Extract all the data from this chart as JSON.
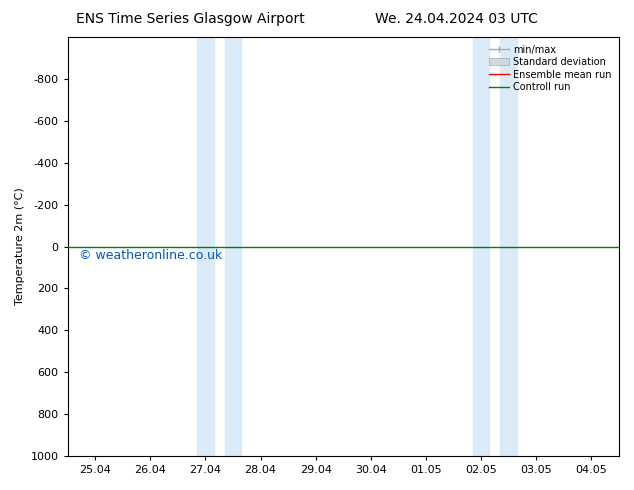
{
  "title_left": "ENS Time Series Glasgow Airport",
  "title_right": "We. 24.04.2024 03 UTC",
  "ylabel": "Temperature 2m (°C)",
  "ylim_bottom": 1000,
  "ylim_top": -1000,
  "yticks": [
    -800,
    -600,
    -400,
    -200,
    0,
    200,
    400,
    600,
    800,
    1000
  ],
  "xtick_labels": [
    "25.04",
    "26.04",
    "27.04",
    "28.04",
    "29.04",
    "30.04",
    "01.05",
    "02.05",
    "03.05",
    "04.05"
  ],
  "xtick_positions": [
    0,
    1,
    2,
    3,
    4,
    5,
    6,
    7,
    8,
    9
  ],
  "xlim": [
    -0.5,
    9.5
  ],
  "shaded_bands": [
    {
      "x_start": 1.85,
      "x_end": 2.15,
      "color": "#daeaf7"
    },
    {
      "x_start": 2.35,
      "x_end": 2.65,
      "color": "#daeaf7"
    },
    {
      "x_start": 6.85,
      "x_end": 7.15,
      "color": "#daeaf7"
    },
    {
      "x_start": 7.35,
      "x_end": 7.65,
      "color": "#daeaf7"
    }
  ],
  "green_line_y": 0,
  "background_color": "#ffffff",
  "plot_bg_color": "#ffffff",
  "legend_items": [
    "min/max",
    "Standard deviation",
    "Ensemble mean run",
    "Controll run"
  ],
  "legend_line_colors": [
    "#aaaaaa",
    "#cccccc",
    "#ff0000",
    "#008000"
  ],
  "copyright_text": "© weatheronline.co.uk",
  "copyright_color": "#0055cc",
  "title_fontsize": 10,
  "axis_fontsize": 8,
  "copyright_fontsize": 9
}
